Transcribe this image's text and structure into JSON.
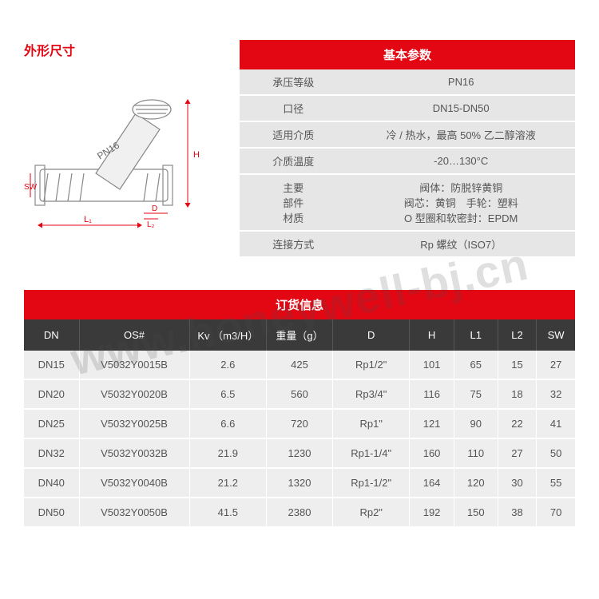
{
  "diagram": {
    "title": "外形尺寸",
    "label_pn": "PN16",
    "label_h": "H",
    "label_d": "D",
    "label_l1": "L₁",
    "label_l2": "L₂",
    "label_sw": "SW"
  },
  "params": {
    "header": "基本参数",
    "rows": [
      {
        "label": "承压等级",
        "value": "PN16"
      },
      {
        "label": "口径",
        "value": "DN15-DN50"
      },
      {
        "label": "适用介质",
        "value": "冷 / 热水，最高 50% 乙二醇溶液"
      },
      {
        "label": "介质温度",
        "value": "-20…130°C"
      },
      {
        "label": "主要\n部件\n材质",
        "value": "阀体：防脱锌黄铜\n阀芯：黄铜　手轮：塑料\nO 型圈和软密封：EPDM"
      },
      {
        "label": "连接方式",
        "value": "Rp 螺纹（ISO7）"
      }
    ]
  },
  "order": {
    "header": "订货信息",
    "columns": [
      "DN",
      "OS#",
      "Kv （m3/H）",
      "重量（g）",
      "D",
      "H",
      "L1",
      "L2",
      "SW"
    ],
    "col_classes": [
      "col-dn",
      "col-os",
      "col-kv",
      "col-wt",
      "col-d",
      "col-h",
      "col-l1",
      "col-l2",
      "col-sw"
    ],
    "rows": [
      [
        "DN15",
        "V5032Y0015B",
        "2.6",
        "425",
        "Rp1/2\"",
        "101",
        "65",
        "15",
        "27"
      ],
      [
        "DN20",
        "V5032Y0020B",
        "6.5",
        "560",
        "Rp3/4\"",
        "116",
        "75",
        "18",
        "32"
      ],
      [
        "DN25",
        "V5032Y0025B",
        "6.6",
        "720",
        "Rp1\"",
        "121",
        "90",
        "22",
        "41"
      ],
      [
        "DN32",
        "V5032Y0032B",
        "21.9",
        "1230",
        "Rp1-1/4\"",
        "160",
        "110",
        "27",
        "50"
      ],
      [
        "DN40",
        "V5032Y0040B",
        "21.2",
        "1320",
        "Rp1-1/2\"",
        "164",
        "120",
        "30",
        "55"
      ],
      [
        "DN50",
        "V5032Y0050B",
        "41.5",
        "2380",
        "Rp2\"",
        "192",
        "150",
        "38",
        "70"
      ]
    ]
  },
  "watermark": "www.honeywell-bj.cn",
  "colors": {
    "accent": "#e30613",
    "dark": "#3a3a3a",
    "cell": "#eeeeee",
    "params_cell": "#e6e6e6"
  }
}
